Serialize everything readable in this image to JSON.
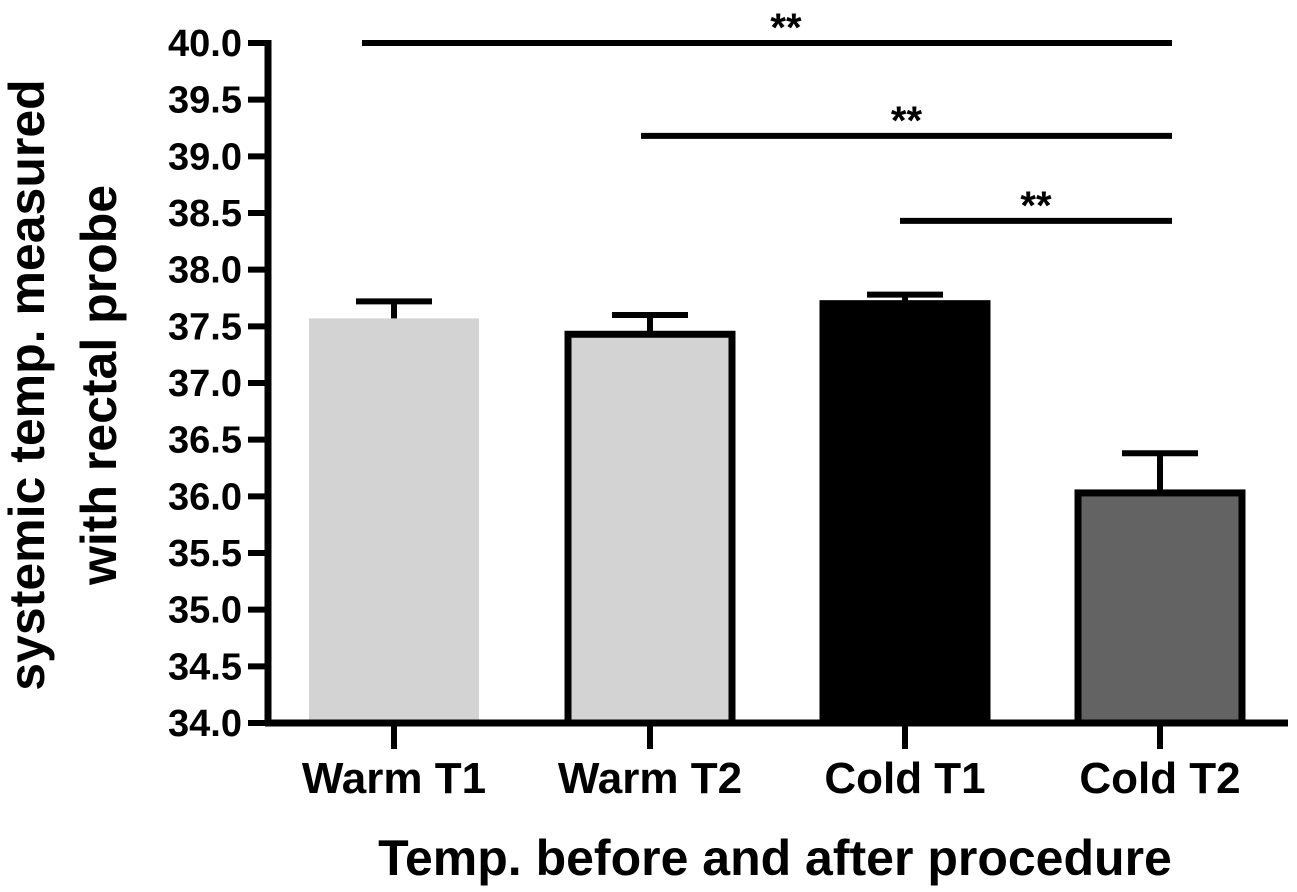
{
  "chart_data": {
    "type": "bar",
    "title": "",
    "xlabel": "Temp. before and after procedure",
    "ylabel_lines": [
      "systemic temp. measured",
      "with rectal probe"
    ],
    "ylim": [
      34.0,
      40.0
    ],
    "yticks": [
      "34.0",
      "34.5",
      "35.0",
      "35.5",
      "36.0",
      "36.5",
      "37.0",
      "37.5",
      "38.0",
      "38.5",
      "39.0",
      "39.5",
      "40.0"
    ],
    "categories": [
      "Warm T1",
      "Warm T2",
      "Cold T1",
      "Cold T2"
    ],
    "values": [
      37.57,
      37.43,
      37.7,
      36.03
    ],
    "errors": [
      0.15,
      0.17,
      0.08,
      0.35
    ],
    "bar_fills": [
      "#d3d3d3",
      "#d3d3d3",
      "#000000",
      "#636363"
    ],
    "bar_outlined": [
      false,
      true,
      true,
      true
    ],
    "significance": [
      {
        "from": 0,
        "to": 3,
        "y": 40.0,
        "label": "**"
      },
      {
        "from": 1,
        "to": 3,
        "y": 39.18,
        "label": "**"
      },
      {
        "from": 2,
        "to": 3,
        "y": 38.43,
        "label": "**"
      }
    ]
  }
}
